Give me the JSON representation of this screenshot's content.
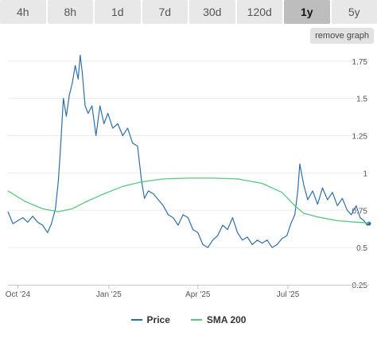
{
  "tabs": [
    {
      "label": "4h",
      "active": false
    },
    {
      "label": "8h",
      "active": false
    },
    {
      "label": "1d",
      "active": false
    },
    {
      "label": "7d",
      "active": false
    },
    {
      "label": "30d",
      "active": false
    },
    {
      "label": "120d",
      "active": false
    },
    {
      "label": "1y",
      "active": true
    },
    {
      "label": "5y",
      "active": false
    }
  ],
  "remove_graph_label": "remove graph",
  "chart_data": {
    "type": "line",
    "xlabel": "",
    "ylabel": "",
    "x_range": [
      "2024-09-21",
      "2025-09-21"
    ],
    "ylim": [
      0.25,
      1.85
    ],
    "y_ticks": [
      0.25,
      0.5,
      0.75,
      1,
      1.25,
      1.5,
      1.75
    ],
    "y_tick_labels": [
      "0.25",
      "0.5",
      "0.75",
      "1",
      "1.25",
      "1.5",
      "1.75"
    ],
    "x_ticks": [
      {
        "date": "2024-10-01",
        "label": "Oct '24"
      },
      {
        "date": "2025-01-01",
        "label": "Jan '25"
      },
      {
        "date": "2025-04-01",
        "label": "Apr '25"
      },
      {
        "date": "2025-07-01",
        "label": "Jul '25"
      }
    ],
    "grid": "horizontal",
    "legend_position": "bottom",
    "series": [
      {
        "name": "Price",
        "color": "#2f6fa8",
        "points": [
          [
            "2024-09-21",
            0.74
          ],
          [
            "2024-09-26",
            0.66
          ],
          [
            "2024-10-01",
            0.68
          ],
          [
            "2024-10-06",
            0.7
          ],
          [
            "2024-10-11",
            0.67
          ],
          [
            "2024-10-16",
            0.71
          ],
          [
            "2024-10-21",
            0.67
          ],
          [
            "2024-10-26",
            0.65
          ],
          [
            "2024-10-31",
            0.6
          ],
          [
            "2024-11-04",
            0.66
          ],
          [
            "2024-11-08",
            0.76
          ],
          [
            "2024-11-11",
            0.95
          ],
          [
            "2024-11-13",
            1.15
          ],
          [
            "2024-11-16",
            1.5
          ],
          [
            "2024-11-19",
            1.38
          ],
          [
            "2024-11-22",
            1.52
          ],
          [
            "2024-11-25",
            1.6
          ],
          [
            "2024-11-28",
            1.72
          ],
          [
            "2024-12-01",
            1.63
          ],
          [
            "2024-12-03",
            1.79
          ],
          [
            "2024-12-05",
            1.68
          ],
          [
            "2024-12-08",
            1.45
          ],
          [
            "2024-12-11",
            1.4
          ],
          [
            "2024-12-15",
            1.45
          ],
          [
            "2024-12-19",
            1.25
          ],
          [
            "2024-12-23",
            1.45
          ],
          [
            "2024-12-27",
            1.33
          ],
          [
            "2024-12-31",
            1.4
          ],
          [
            "2025-01-05",
            1.3
          ],
          [
            "2025-01-10",
            1.33
          ],
          [
            "2025-01-15",
            1.25
          ],
          [
            "2025-01-20",
            1.3
          ],
          [
            "2025-01-25",
            1.2
          ],
          [
            "2025-01-30",
            1.18
          ],
          [
            "2025-02-03",
            0.95
          ],
          [
            "2025-02-06",
            0.83
          ],
          [
            "2025-02-10",
            0.88
          ],
          [
            "2025-02-15",
            0.86
          ],
          [
            "2025-02-20",
            0.82
          ],
          [
            "2025-02-25",
            0.78
          ],
          [
            "2025-03-02",
            0.72
          ],
          [
            "2025-03-07",
            0.7
          ],
          [
            "2025-03-12",
            0.65
          ],
          [
            "2025-03-17",
            0.72
          ],
          [
            "2025-03-22",
            0.7
          ],
          [
            "2025-03-27",
            0.62
          ],
          [
            "2025-04-01",
            0.6
          ],
          [
            "2025-04-06",
            0.52
          ],
          [
            "2025-04-11",
            0.5
          ],
          [
            "2025-04-16",
            0.55
          ],
          [
            "2025-04-21",
            0.58
          ],
          [
            "2025-04-26",
            0.65
          ],
          [
            "2025-05-01",
            0.62
          ],
          [
            "2025-05-06",
            0.7
          ],
          [
            "2025-05-11",
            0.6
          ],
          [
            "2025-05-16",
            0.55
          ],
          [
            "2025-05-21",
            0.57
          ],
          [
            "2025-05-26",
            0.52
          ],
          [
            "2025-05-31",
            0.55
          ],
          [
            "2025-06-05",
            0.53
          ],
          [
            "2025-06-10",
            0.55
          ],
          [
            "2025-06-15",
            0.5
          ],
          [
            "2025-06-20",
            0.52
          ],
          [
            "2025-06-25",
            0.56
          ],
          [
            "2025-06-30",
            0.58
          ],
          [
            "2025-07-04",
            0.66
          ],
          [
            "2025-07-08",
            0.72
          ],
          [
            "2025-07-11",
            0.88
          ],
          [
            "2025-07-13",
            1.06
          ],
          [
            "2025-07-17",
            0.92
          ],
          [
            "2025-07-21",
            0.82
          ],
          [
            "2025-07-26",
            0.88
          ],
          [
            "2025-07-31",
            0.79
          ],
          [
            "2025-08-05",
            0.9
          ],
          [
            "2025-08-10",
            0.82
          ],
          [
            "2025-08-15",
            0.87
          ],
          [
            "2025-08-20",
            0.78
          ],
          [
            "2025-08-25",
            0.83
          ],
          [
            "2025-08-30",
            0.75
          ],
          [
            "2025-09-03",
            0.72
          ],
          [
            "2025-09-08",
            0.78
          ],
          [
            "2025-09-12",
            0.7
          ],
          [
            "2025-09-16",
            0.68
          ],
          [
            "2025-09-19",
            0.65
          ],
          [
            "2025-09-21",
            0.66
          ]
        ]
      },
      {
        "name": "SMA 200",
        "color": "#58c77e",
        "points": [
          [
            "2024-09-21",
            0.88
          ],
          [
            "2024-10-08",
            0.81
          ],
          [
            "2024-10-26",
            0.76
          ],
          [
            "2024-11-11",
            0.74
          ],
          [
            "2024-11-25",
            0.76
          ],
          [
            "2024-12-10",
            0.81
          ],
          [
            "2024-12-27",
            0.86
          ],
          [
            "2025-01-15",
            0.91
          ],
          [
            "2025-02-03",
            0.94
          ],
          [
            "2025-02-25",
            0.96
          ],
          [
            "2025-03-22",
            0.965
          ],
          [
            "2025-04-16",
            0.965
          ],
          [
            "2025-05-11",
            0.96
          ],
          [
            "2025-06-05",
            0.93
          ],
          [
            "2025-06-25",
            0.87
          ],
          [
            "2025-07-08",
            0.78
          ],
          [
            "2025-07-17",
            0.73
          ],
          [
            "2025-07-31",
            0.705
          ],
          [
            "2025-08-20",
            0.68
          ],
          [
            "2025-09-08",
            0.67
          ],
          [
            "2025-09-21",
            0.665
          ]
        ]
      }
    ]
  }
}
